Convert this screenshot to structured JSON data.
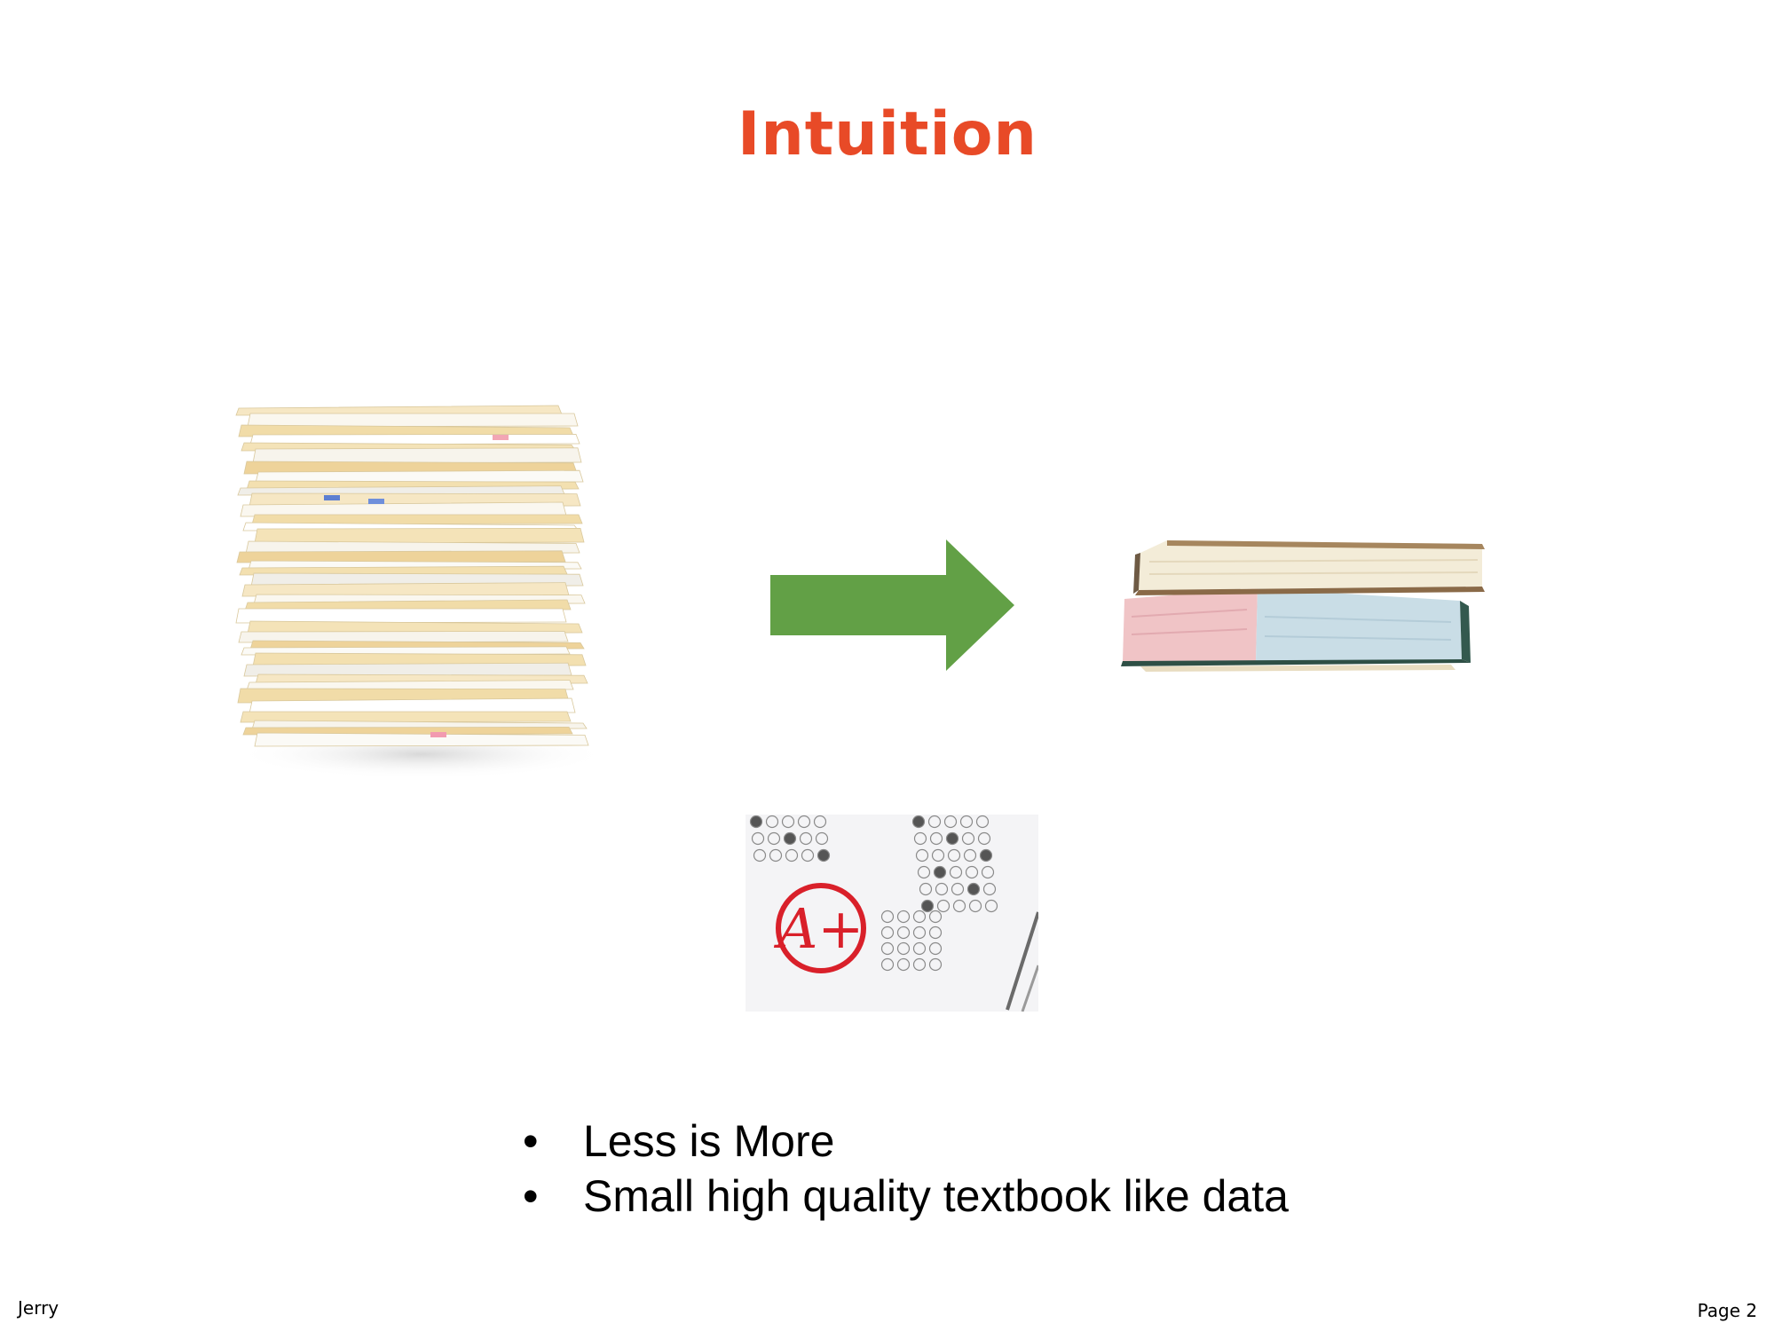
{
  "slide": {
    "title": "Intuition",
    "title_color": "#e84a27",
    "arrow_color": "#62a046",
    "illustrations": {
      "left": "paper-stack-icon",
      "right": "textbooks-icon",
      "bottom": "answer-sheet-a-plus-icon",
      "grade": "A+"
    },
    "bullets": [
      "Less is More",
      "Small high quality textbook like data"
    ],
    "footer": {
      "author": "Jerry",
      "page": "Page 2"
    }
  }
}
